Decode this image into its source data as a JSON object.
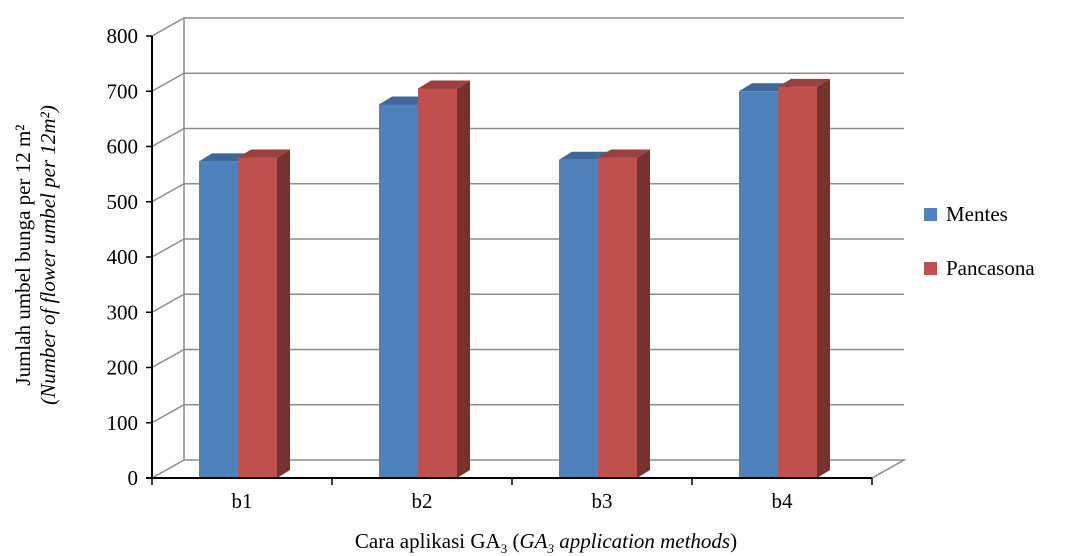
{
  "chart_data": {
    "type": "bar",
    "categories": [
      "b1",
      "b2",
      "b3",
      "b4"
    ],
    "series": [
      {
        "name": "Mentes",
        "values": [
          573,
          676,
          576,
          700
        ]
      },
      {
        "name": "Pancasona",
        "values": [
          580,
          705,
          580,
          708
        ]
      }
    ],
    "ylim": [
      0,
      800
    ],
    "y_ticks": [
      "0",
      "100",
      "200",
      "300",
      "400",
      "500",
      "600",
      "700",
      "800"
    ],
    "ylabel_line1": "Jumlah umbel bunga per 12 m²",
    "ylabel_line2": "(Number of flower umbel per 12m²)",
    "xlabel_main": "Cara aplikasi GA",
    "xlabel_sub": "3",
    "xlabel_open": " (",
    "xlabel_italic": "GA",
    "xlabel_italic_sub": "3",
    "xlabel_italic_rest": " application methods",
    "xlabel_close": ")",
    "grid": true,
    "legend_position": "right",
    "colors": {
      "Mentes": "#4f81bd",
      "Pancasona": "#c0504d",
      "grid": "#8c8c8c"
    }
  }
}
